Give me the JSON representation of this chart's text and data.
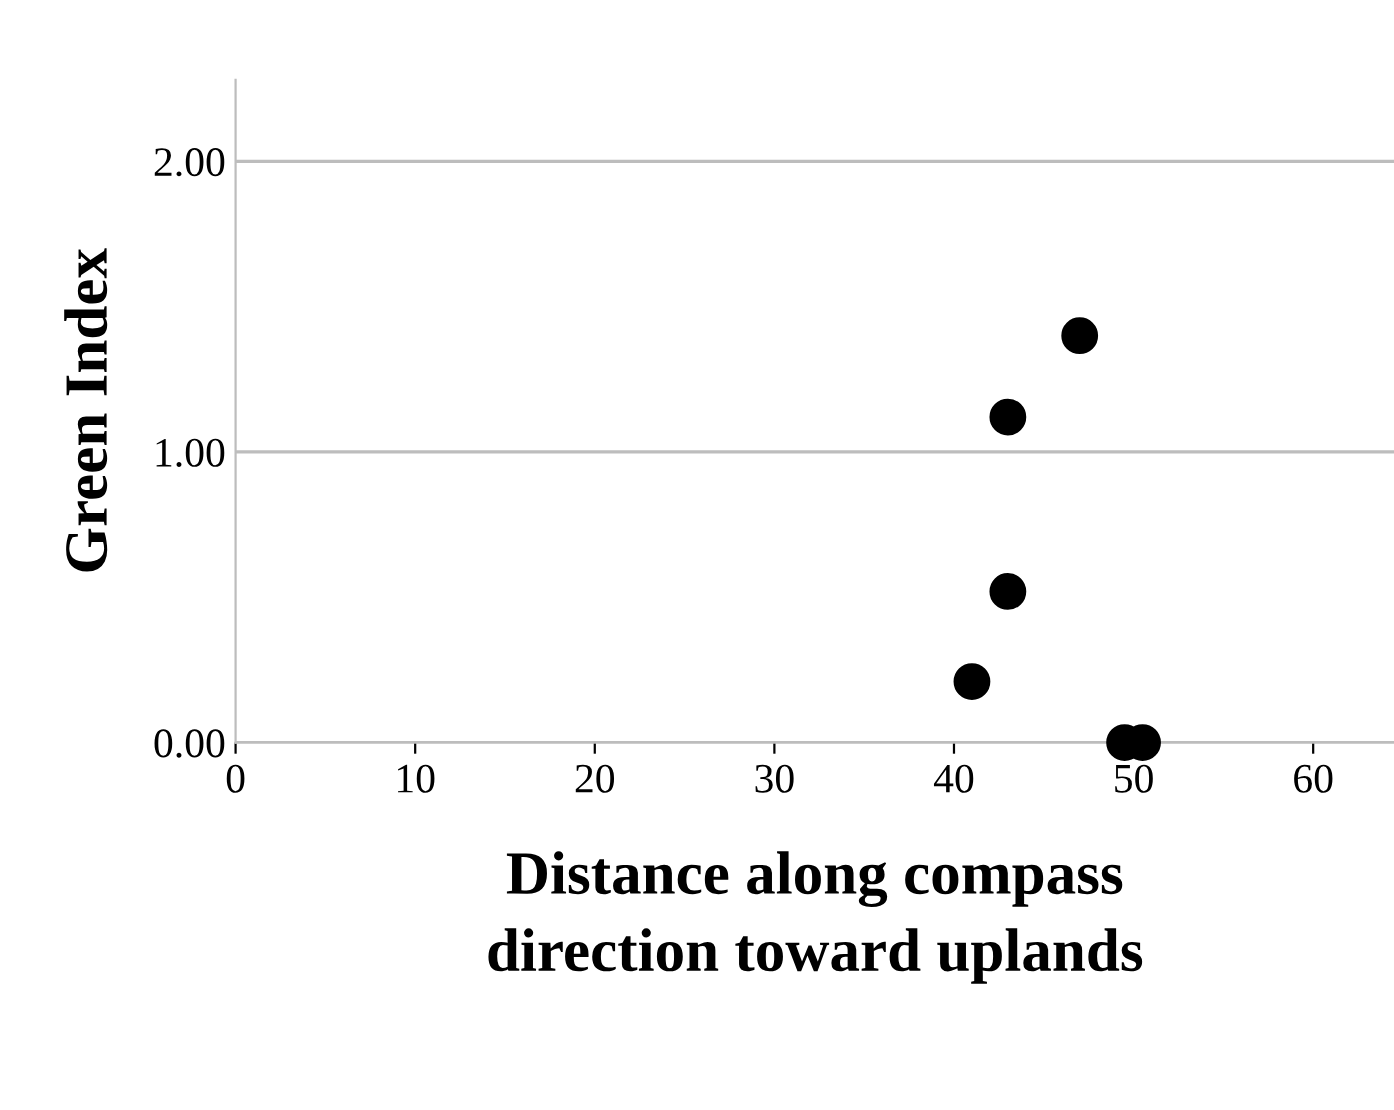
{
  "chart_data": {
    "type": "scatter",
    "xlabel": "Distance along compass\ndirection toward uplands",
    "ylabel": "Green Index",
    "x": [
      41,
      43,
      43,
      47,
      49.5,
      50.5
    ],
    "values": [
      0.21,
      0.52,
      1.12,
      1.4,
      0,
      0
    ],
    "color": "#000000",
    "marker": "circle",
    "xlim": [
      0,
      64.5
    ],
    "xticks": [
      0,
      10,
      20,
      30,
      40,
      50,
      60
    ],
    "ylim": [
      0,
      2.28
    ],
    "yticks": [
      {
        "value": 0,
        "label": "0.00"
      },
      {
        "value": 1,
        "label": "1.00"
      },
      {
        "value": 2,
        "label": "2.00"
      }
    ],
    "grid": "y"
  }
}
